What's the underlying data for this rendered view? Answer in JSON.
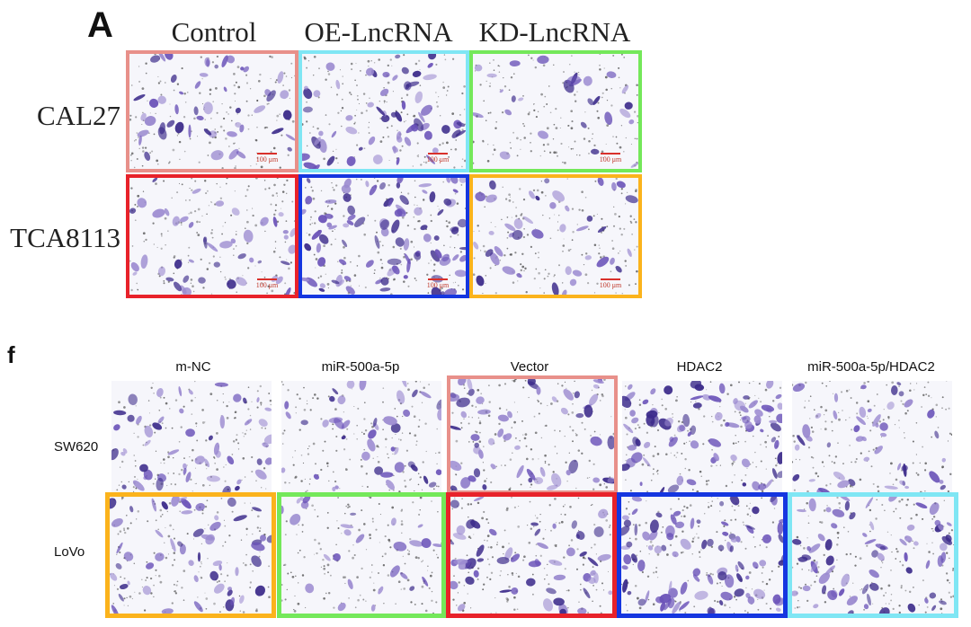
{
  "panel_a": {
    "letter": "A",
    "columns": [
      "Control",
      "OE-LncRNA",
      "KD-LncRNA"
    ],
    "rows": [
      "CAL27",
      "TCA8113"
    ],
    "scale_bar_label": "100 μm",
    "border_colors": [
      [
        "#e8908a",
        "#7fe6f4",
        "#74e85a"
      ],
      [
        "#e8222a",
        "#1536e0",
        "#fbb31c"
      ]
    ]
  },
  "panel_f": {
    "letter": "f",
    "columns": [
      "m-NC",
      "miR-500a-5p",
      "Vector",
      "HDAC2",
      "miR-500a-5p/HDAC2"
    ],
    "rows": [
      "SW620",
      "LoVo"
    ],
    "border_colors": [
      [
        "",
        "",
        "#e8908a",
        "",
        ""
      ],
      [
        "#fbb31c",
        "#74e85a",
        "#e8222a",
        "#1536e0",
        "#7fe6f4"
      ]
    ]
  },
  "colors": {
    "stain_light": "#9b8ad0",
    "stain_mid": "#6a52b8",
    "stain_dark": "#3b2a8a",
    "background": "#f6f6fb"
  }
}
